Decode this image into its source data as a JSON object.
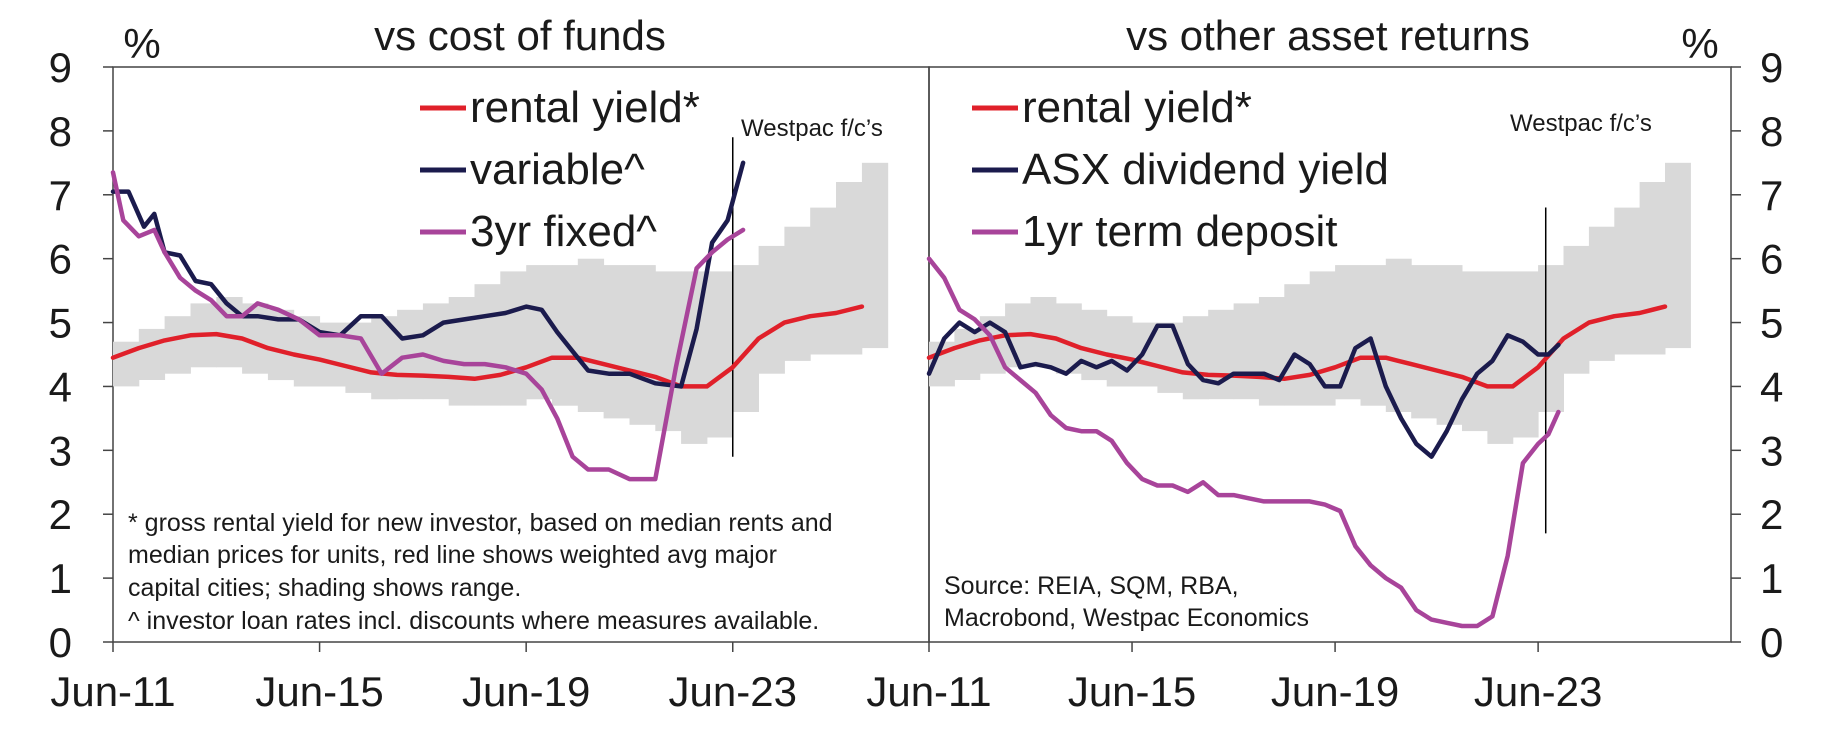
{
  "colors": {
    "rental_yield": "#e0202a",
    "variable": "#1b1b4d",
    "fixed": "#a8449a",
    "asx": "#1b1b4d",
    "term_deposit": "#a8449a",
    "range": "#d9d9d9",
    "frame": "#444444"
  },
  "chart_data": [
    {
      "type": "line",
      "title": "vs cost of funds",
      "ylabel": "%",
      "ylim": [
        0,
        9
      ],
      "yticks": [
        "0",
        "1",
        "2",
        "3",
        "4",
        "5",
        "6",
        "7",
        "8",
        "9"
      ],
      "xlim": [
        2011.0,
        2026.8
      ],
      "xticks": [
        {
          "x": 2011.0,
          "label": "Jun-11"
        },
        {
          "x": 2015.0,
          "label": "Jun-15"
        },
        {
          "x": 2019.0,
          "label": "Jun-19"
        },
        {
          "x": 2023.0,
          "label": "Jun-23"
        }
      ],
      "forecast_label": "Westpac f/c’s",
      "forecast_x": 2023.0,
      "forecast_range": [
        2.9,
        7.9
      ],
      "legend_placement": "top-center",
      "note": [
        "* gross rental yield for new investor, based on median rents and",
        "median prices for units, red line shows weighted avg major",
        "capital cities; shading shows range.",
        "^ investor loan rates incl. discounts where measures available."
      ],
      "shading": {
        "name": "range",
        "x": [
          2011.0,
          2011.5,
          2012.0,
          2012.5,
          2013.0,
          2013.5,
          2014.0,
          2014.5,
          2015.0,
          2015.5,
          2016.0,
          2016.5,
          2017.0,
          2017.5,
          2018.0,
          2018.5,
          2019.0,
          2019.5,
          2020.0,
          2020.5,
          2021.0,
          2021.5,
          2022.0,
          2022.5,
          2023.0,
          2023.5,
          2024.0,
          2024.5,
          2025.0,
          2025.5
        ],
        "low": [
          4.0,
          4.1,
          4.2,
          4.3,
          4.3,
          4.2,
          4.1,
          4.0,
          4.0,
          3.9,
          3.8,
          3.8,
          3.8,
          3.7,
          3.7,
          3.7,
          3.8,
          3.7,
          3.6,
          3.5,
          3.4,
          3.3,
          3.1,
          3.2,
          3.6,
          4.2,
          4.4,
          4.5,
          4.5,
          4.6
        ],
        "high": [
          4.7,
          4.9,
          5.1,
          5.3,
          5.4,
          5.3,
          5.2,
          5.1,
          5.0,
          5.0,
          5.1,
          5.2,
          5.3,
          5.4,
          5.6,
          5.8,
          5.9,
          5.9,
          6.0,
          5.9,
          5.9,
          5.8,
          5.8,
          5.8,
          5.9,
          6.2,
          6.5,
          6.8,
          7.2,
          7.5
        ]
      },
      "series": [
        {
          "name": "rental yield*",
          "color_key": "rental_yield",
          "x": [
            2011.0,
            2011.5,
            2012.0,
            2012.5,
            2013.0,
            2013.5,
            2014.0,
            2014.5,
            2015.0,
            2015.5,
            2016.0,
            2016.5,
            2017.0,
            2017.5,
            2018.0,
            2018.5,
            2019.0,
            2019.5,
            2020.0,
            2020.5,
            2021.0,
            2021.5,
            2022.0,
            2022.5,
            2023.0,
            2023.5,
            2024.0,
            2024.5,
            2025.0,
            2025.5
          ],
          "y": [
            4.45,
            4.6,
            4.72,
            4.8,
            4.82,
            4.75,
            4.6,
            4.5,
            4.42,
            4.32,
            4.22,
            4.18,
            4.17,
            4.15,
            4.12,
            4.18,
            4.3,
            4.45,
            4.45,
            4.35,
            4.25,
            4.15,
            4.0,
            4.0,
            4.3,
            4.75,
            5.0,
            5.1,
            5.15,
            5.25
          ]
        },
        {
          "name": "variable^",
          "color_key": "variable",
          "x": [
            2011.0,
            2011.3,
            2011.6,
            2011.8,
            2012.0,
            2012.3,
            2012.6,
            2012.9,
            2013.2,
            2013.5,
            2013.8,
            2014.2,
            2014.6,
            2015.0,
            2015.4,
            2015.8,
            2016.2,
            2016.6,
            2017.0,
            2017.4,
            2017.8,
            2018.2,
            2018.6,
            2019.0,
            2019.3,
            2019.6,
            2019.9,
            2020.2,
            2020.6,
            2021.0,
            2021.5,
            2022.0,
            2022.3,
            2022.6,
            2022.9,
            2023.2
          ],
          "y": [
            7.05,
            7.05,
            6.5,
            6.7,
            6.1,
            6.05,
            5.65,
            5.6,
            5.3,
            5.1,
            5.1,
            5.05,
            5.05,
            4.85,
            4.8,
            5.1,
            5.1,
            4.75,
            4.8,
            5.0,
            5.05,
            5.1,
            5.15,
            5.25,
            5.2,
            4.85,
            4.55,
            4.25,
            4.2,
            4.2,
            4.05,
            4.0,
            4.9,
            6.25,
            6.6,
            7.5
          ]
        },
        {
          "name": "3yr fixed^",
          "color_key": "fixed",
          "x": [
            2011.0,
            2011.2,
            2011.5,
            2011.8,
            2012.0,
            2012.3,
            2012.6,
            2012.9,
            2013.2,
            2013.5,
            2013.8,
            2014.2,
            2014.6,
            2015.0,
            2015.4,
            2015.8,
            2016.2,
            2016.6,
            2017.0,
            2017.4,
            2017.8,
            2018.2,
            2018.6,
            2019.0,
            2019.3,
            2019.6,
            2019.9,
            2020.2,
            2020.6,
            2021.0,
            2021.5,
            2021.9,
            2022.3,
            2022.6,
            2022.9,
            2023.2
          ],
          "y": [
            7.35,
            6.6,
            6.35,
            6.45,
            6.1,
            5.7,
            5.5,
            5.35,
            5.1,
            5.1,
            5.3,
            5.2,
            5.05,
            4.8,
            4.8,
            4.75,
            4.2,
            4.45,
            4.5,
            4.4,
            4.35,
            4.35,
            4.3,
            4.2,
            3.95,
            3.5,
            2.9,
            2.7,
            2.7,
            2.55,
            2.55,
            4.3,
            5.85,
            6.1,
            6.3,
            6.45
          ]
        }
      ]
    },
    {
      "type": "line",
      "title": "vs other asset returns",
      "ylabel": "%",
      "ylim": [
        0,
        9
      ],
      "yticks": [
        "0",
        "1",
        "2",
        "3",
        "4",
        "5",
        "6",
        "7",
        "8",
        "9"
      ],
      "xlim": [
        2011.0,
        2026.8
      ],
      "xticks": [
        {
          "x": 2011.0,
          "label": "Jun-11"
        },
        {
          "x": 2015.0,
          "label": "Jun-15"
        },
        {
          "x": 2019.0,
          "label": "Jun-19"
        },
        {
          "x": 2023.0,
          "label": "Jun-23"
        }
      ],
      "forecast_label": "Westpac f/c’s",
      "forecast_x": 2023.15,
      "forecast_range": [
        1.7,
        6.8
      ],
      "legend_placement": "top-left",
      "note": [
        "Source: REIA, SQM, RBA,",
        "Macrobond, Westpac Economics"
      ],
      "shading": {
        "name": "range",
        "x": [
          2011.0,
          2011.5,
          2012.0,
          2012.5,
          2013.0,
          2013.5,
          2014.0,
          2014.5,
          2015.0,
          2015.5,
          2016.0,
          2016.5,
          2017.0,
          2017.5,
          2018.0,
          2018.5,
          2019.0,
          2019.5,
          2020.0,
          2020.5,
          2021.0,
          2021.5,
          2022.0,
          2022.5,
          2023.0,
          2023.5,
          2024.0,
          2024.5,
          2025.0,
          2025.5
        ],
        "low": [
          4.0,
          4.1,
          4.2,
          4.3,
          4.3,
          4.2,
          4.1,
          4.0,
          4.0,
          3.9,
          3.8,
          3.8,
          3.8,
          3.7,
          3.7,
          3.7,
          3.8,
          3.7,
          3.6,
          3.5,
          3.4,
          3.3,
          3.1,
          3.2,
          3.6,
          4.2,
          4.4,
          4.5,
          4.5,
          4.6
        ],
        "high": [
          4.7,
          4.9,
          5.1,
          5.3,
          5.4,
          5.3,
          5.2,
          5.1,
          5.0,
          5.0,
          5.1,
          5.2,
          5.3,
          5.4,
          5.6,
          5.8,
          5.9,
          5.9,
          6.0,
          5.9,
          5.9,
          5.8,
          5.8,
          5.8,
          5.9,
          6.2,
          6.5,
          6.8,
          7.2,
          7.5
        ]
      },
      "series": [
        {
          "name": "rental yield*",
          "color_key": "rental_yield",
          "x": [
            2011.0,
            2011.5,
            2012.0,
            2012.5,
            2013.0,
            2013.5,
            2014.0,
            2014.5,
            2015.0,
            2015.5,
            2016.0,
            2016.5,
            2017.0,
            2017.5,
            2018.0,
            2018.5,
            2019.0,
            2019.5,
            2020.0,
            2020.5,
            2021.0,
            2021.5,
            2022.0,
            2022.5,
            2023.0,
            2023.5,
            2024.0,
            2024.5,
            2025.0,
            2025.5
          ],
          "y": [
            4.45,
            4.6,
            4.72,
            4.8,
            4.82,
            4.75,
            4.6,
            4.5,
            4.42,
            4.32,
            4.22,
            4.18,
            4.17,
            4.15,
            4.12,
            4.18,
            4.3,
            4.45,
            4.45,
            4.35,
            4.25,
            4.15,
            4.0,
            4.0,
            4.3,
            4.75,
            5.0,
            5.1,
            5.15,
            5.25
          ]
        },
        {
          "name": "ASX dividend yield",
          "color_key": "asx",
          "x": [
            2011.0,
            2011.3,
            2011.6,
            2011.9,
            2012.2,
            2012.5,
            2012.8,
            2013.1,
            2013.4,
            2013.7,
            2014.0,
            2014.3,
            2014.6,
            2014.9,
            2015.2,
            2015.5,
            2015.8,
            2016.1,
            2016.4,
            2016.7,
            2017.0,
            2017.3,
            2017.6,
            2017.9,
            2018.2,
            2018.5,
            2018.8,
            2019.1,
            2019.4,
            2019.7,
            2020.0,
            2020.3,
            2020.6,
            2020.9,
            2021.2,
            2021.5,
            2021.8,
            2022.1,
            2022.4,
            2022.7,
            2023.0,
            2023.2,
            2023.4
          ],
          "y": [
            4.2,
            4.75,
            5.0,
            4.85,
            5.0,
            4.85,
            4.3,
            4.35,
            4.3,
            4.2,
            4.4,
            4.3,
            4.4,
            4.25,
            4.5,
            4.95,
            4.95,
            4.35,
            4.1,
            4.05,
            4.2,
            4.2,
            4.2,
            4.1,
            4.5,
            4.35,
            4.0,
            4.0,
            4.6,
            4.75,
            4.0,
            3.5,
            3.1,
            2.9,
            3.3,
            3.8,
            4.2,
            4.4,
            4.8,
            4.7,
            4.5,
            4.5,
            4.65
          ]
        },
        {
          "name": "1yr term deposit",
          "color_key": "term_deposit",
          "x": [
            2011.0,
            2011.3,
            2011.6,
            2011.9,
            2012.2,
            2012.5,
            2012.8,
            2013.1,
            2013.4,
            2013.7,
            2014.0,
            2014.3,
            2014.6,
            2014.9,
            2015.2,
            2015.5,
            2015.8,
            2016.1,
            2016.4,
            2016.7,
            2017.0,
            2017.3,
            2017.6,
            2017.9,
            2018.2,
            2018.5,
            2018.8,
            2019.1,
            2019.4,
            2019.7,
            2020.0,
            2020.3,
            2020.6,
            2020.9,
            2021.2,
            2021.5,
            2021.8,
            2022.1,
            2022.4,
            2022.7,
            2023.0,
            2023.2,
            2023.4
          ],
          "y": [
            6.0,
            5.7,
            5.2,
            5.05,
            4.8,
            4.3,
            4.1,
            3.9,
            3.55,
            3.35,
            3.3,
            3.3,
            3.15,
            2.8,
            2.55,
            2.45,
            2.45,
            2.35,
            2.5,
            2.3,
            2.3,
            2.25,
            2.2,
            2.2,
            2.2,
            2.2,
            2.15,
            2.05,
            1.5,
            1.2,
            1.0,
            0.85,
            0.5,
            0.35,
            0.3,
            0.25,
            0.25,
            0.4,
            1.35,
            2.8,
            3.1,
            3.25,
            3.6
          ]
        }
      ]
    }
  ],
  "panels": [
    {
      "title": "vs cost of funds",
      "unit": "%",
      "forecast_label": "Westpac f/c’s",
      "legend": [
        "rental yield*",
        "variable^",
        "3yr fixed^"
      ],
      "note": [
        "* gross rental yield for new investor, based on median rents and",
        "median prices for units, red line shows weighted avg major",
        "capital cities; shading shows range.",
        "^ investor loan rates incl. discounts where measures available."
      ],
      "xticks": [
        "Jun-11",
        "Jun-15",
        "Jun-19",
        "Jun-23"
      ]
    },
    {
      "title": "vs other asset returns",
      "unit": "%",
      "forecast_label": "Westpac f/c’s",
      "legend": [
        "rental yield*",
        "ASX dividend yield",
        "1yr term deposit"
      ],
      "note": [
        "Source: REIA, SQM, RBA,",
        "Macrobond, Westpac Economics"
      ],
      "xticks": [
        "Jun-11",
        "Jun-15",
        "Jun-19",
        "Jun-23"
      ]
    }
  ],
  "y_axis": {
    "left_ticks": [
      "0",
      "1",
      "2",
      "3",
      "4",
      "5",
      "6",
      "7",
      "8",
      "9"
    ],
    "right_ticks": [
      "0",
      "1",
      "2",
      "3",
      "4",
      "5",
      "6",
      "7",
      "8",
      "9"
    ]
  }
}
